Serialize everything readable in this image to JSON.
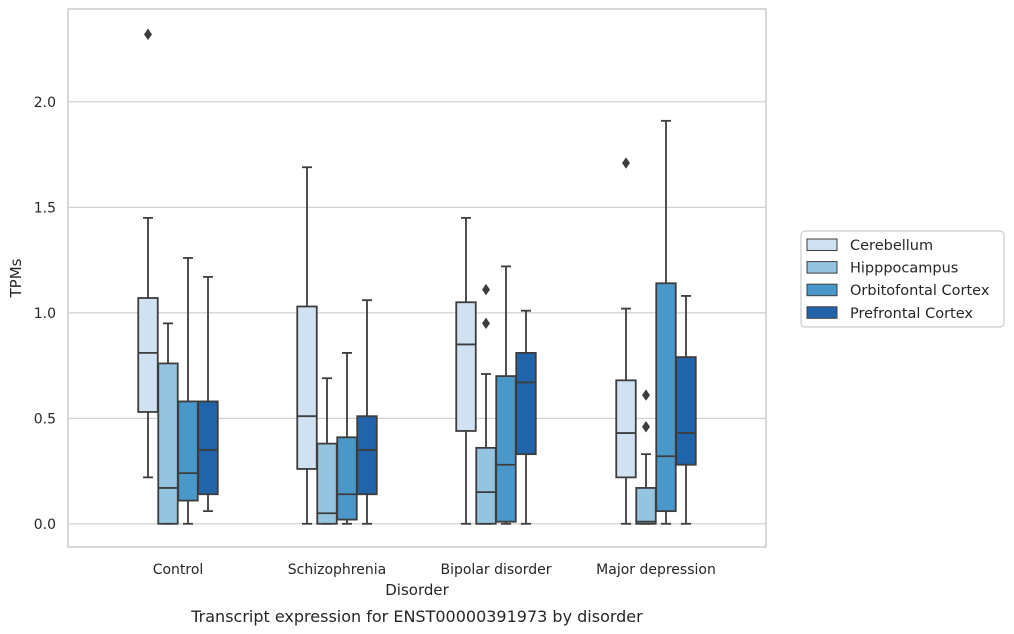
{
  "chart_data": {
    "type": "box",
    "caption": "Transcript expression for ENST00000391973 by disorder",
    "xlabel": "Disorder",
    "ylabel": "TPMs",
    "ylim": [
      -0.11,
      2.44
    ],
    "yticks": [
      "0.0",
      "0.5",
      "1.0",
      "1.5",
      "2.0"
    ],
    "grid": "horizontal",
    "legend_position": "right",
    "categories": [
      "Control",
      "Schizophrenia",
      "Bipolar disorder",
      "Major depression"
    ],
    "series": [
      {
        "name": "Cerebellum",
        "color": "#d0e1f2",
        "boxes": [
          {
            "whisker_low": 0.22,
            "q1": 0.53,
            "median": 0.81,
            "q3": 1.07,
            "whisker_high": 1.45,
            "outliers": [
              2.32
            ]
          },
          {
            "whisker_low": 0.0,
            "q1": 0.26,
            "median": 0.51,
            "q3": 1.03,
            "whisker_high": 1.69,
            "outliers": []
          },
          {
            "whisker_low": 0.0,
            "q1": 0.44,
            "median": 0.85,
            "q3": 1.05,
            "whisker_high": 1.45,
            "outliers": []
          },
          {
            "whisker_low": 0.0,
            "q1": 0.22,
            "median": 0.43,
            "q3": 0.68,
            "whisker_high": 1.02,
            "outliers": [
              1.71
            ]
          }
        ]
      },
      {
        "name": "Hipppocampus",
        "color": "#94c4df",
        "boxes": [
          {
            "whisker_low": 0.0,
            "q1": 0.0,
            "median": 0.17,
            "q3": 0.76,
            "whisker_high": 0.95,
            "outliers": []
          },
          {
            "whisker_low": 0.0,
            "q1": 0.0,
            "median": 0.05,
            "q3": 0.38,
            "whisker_high": 0.69,
            "outliers": []
          },
          {
            "whisker_low": 0.0,
            "q1": 0.0,
            "median": 0.15,
            "q3": 0.36,
            "whisker_high": 0.71,
            "outliers": [
              0.95,
              1.11
            ]
          },
          {
            "whisker_low": 0.0,
            "q1": 0.0,
            "median": 0.01,
            "q3": 0.17,
            "whisker_high": 0.33,
            "outliers": [
              0.46,
              0.61
            ]
          }
        ]
      },
      {
        "name": "Orbitofontal Cortex",
        "color": "#4a98c9",
        "boxes": [
          {
            "whisker_low": 0.0,
            "q1": 0.11,
            "median": 0.24,
            "q3": 0.58,
            "whisker_high": 1.26,
            "outliers": []
          },
          {
            "whisker_low": 0.0,
            "q1": 0.02,
            "median": 0.14,
            "q3": 0.41,
            "whisker_high": 0.81,
            "outliers": []
          },
          {
            "whisker_low": 0.0,
            "q1": 0.01,
            "median": 0.28,
            "q3": 0.7,
            "whisker_high": 1.22,
            "outliers": []
          },
          {
            "whisker_low": 0.0,
            "q1": 0.06,
            "median": 0.32,
            "q3": 1.14,
            "whisker_high": 1.91,
            "outliers": []
          }
        ]
      },
      {
        "name": "Prefrontal Cortex",
        "color": "#2264aa",
        "boxes": [
          {
            "whisker_low": 0.06,
            "q1": 0.14,
            "median": 0.35,
            "q3": 0.58,
            "whisker_high": 1.17,
            "outliers": []
          },
          {
            "whisker_low": 0.0,
            "q1": 0.14,
            "median": 0.35,
            "q3": 0.51,
            "whisker_high": 1.06,
            "outliers": []
          },
          {
            "whisker_low": 0.0,
            "q1": 0.33,
            "median": 0.67,
            "q3": 0.81,
            "whisker_high": 1.01,
            "outliers": []
          },
          {
            "whisker_low": 0.0,
            "q1": 0.28,
            "median": 0.43,
            "q3": 0.79,
            "whisker_high": 1.08,
            "outliers": []
          }
        ]
      }
    ]
  },
  "colors": {
    "line": "#3d3d3d",
    "grid": "#cccccc",
    "frame": "#cccccc"
  }
}
